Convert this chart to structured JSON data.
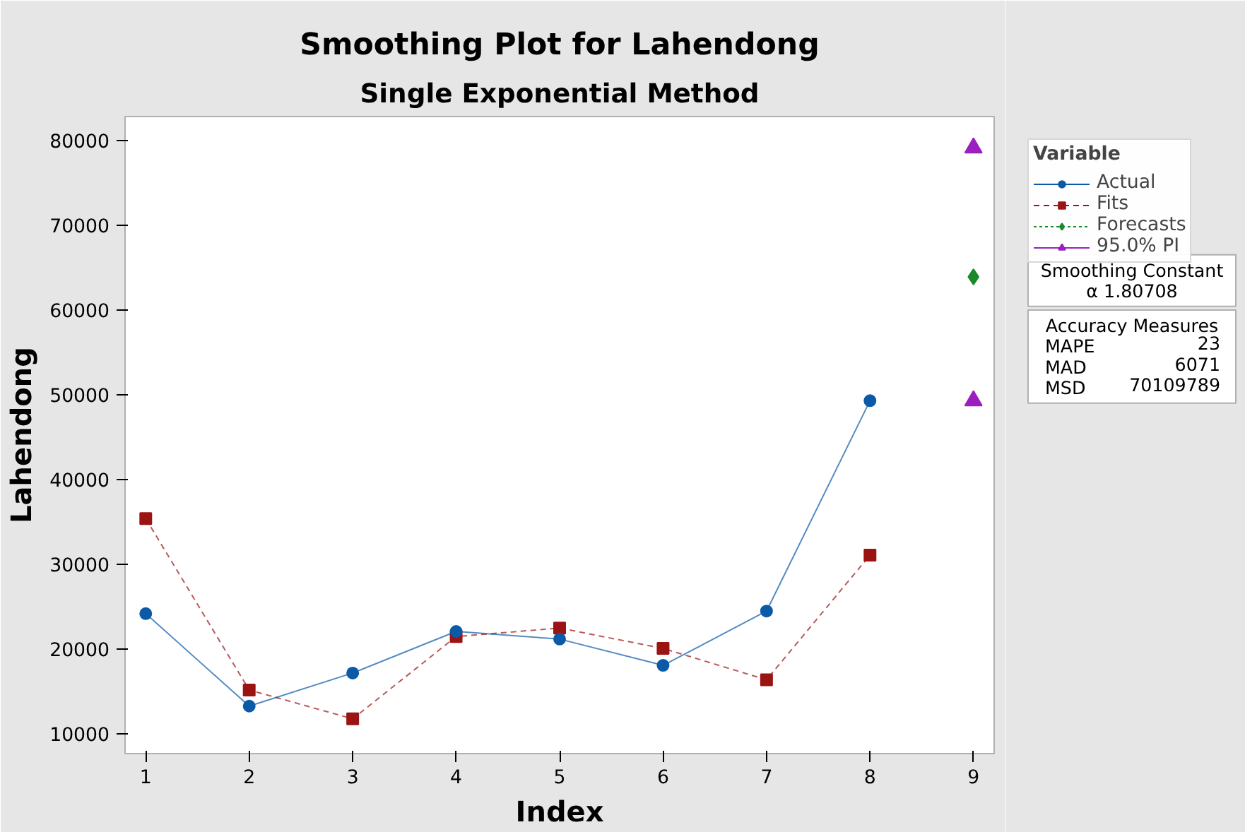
{
  "chart_data": {
    "type": "line",
    "title": "Smoothing Plot for Lahendong",
    "subtitle": "Single Exponential Method",
    "xlabel": "Index",
    "ylabel": "Lahendong",
    "legend_title": "Variable",
    "legend": "top right",
    "grid": false,
    "xlim": [
      0.8,
      9.2
    ],
    "xticks": [
      1,
      2,
      3,
      4,
      5,
      6,
      7,
      8,
      9
    ],
    "ylim": [
      7700,
      82800
    ],
    "yticks": [
      10000,
      20000,
      30000,
      40000,
      50000,
      60000,
      70000,
      80000
    ],
    "series": [
      {
        "name": "Actual",
        "color": "#0b5aa8",
        "marker": "circle",
        "line_style": "solid",
        "x": [
          1,
          2,
          3,
          4,
          5,
          6,
          7,
          8
        ],
        "values": [
          24200,
          13300,
          17200,
          22100,
          21200,
          18100,
          24500,
          49300
        ]
      },
      {
        "name": "Fits",
        "color": "#9b1414",
        "marker": "square",
        "line_style": "dashed",
        "x": [
          1,
          2,
          3,
          4,
          5,
          6,
          7,
          8
        ],
        "values": [
          35400,
          15200,
          11800,
          21500,
          22500,
          20100,
          16400,
          31100
        ]
      },
      {
        "name": "Forecasts",
        "type": "scatter",
        "color": "#1a8a2a",
        "marker": "diamond",
        "line_style": "dotted",
        "x": [
          9
        ],
        "values": [
          63900
        ]
      },
      {
        "name": "95.0% PI",
        "type": "scatter",
        "color": "#9b1fbf",
        "marker": "triangle",
        "line_style": "solid",
        "x": [
          9,
          9
        ],
        "values": [
          79100,
          49300
        ]
      }
    ],
    "annotations": [
      "Smoothing Constant\nα 1.80708",
      "Accuracy Measures\nMAPE  23\nMAD  6071\nMSD  70109789"
    ]
  }
}
